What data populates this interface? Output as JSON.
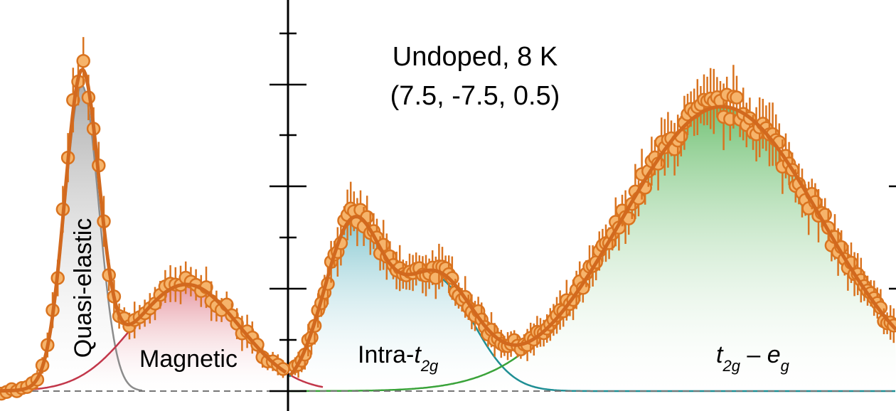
{
  "chart_data": {
    "type": "scatter",
    "title_line1": "Undoped, 8 K",
    "title_line2": "(7.5, -7.5, 0.5)",
    "xlabel": "",
    "ylabel": "",
    "labels": {
      "quasi": "Quasi-elastic",
      "magnetic": "Magnetic",
      "intra_prefix": "Intra-",
      "intra_t": "t",
      "intra_sub": "2g",
      "tg_t": "t",
      "tg_sub1": "2g",
      "tg_dash": " – ",
      "tg_e": "e",
      "tg_sub2": "g"
    },
    "colors": {
      "data": "#d9731f",
      "data_fill": "#f6b46b",
      "quasi_fill": "#b9b9b9",
      "quasi_line": "#8c8c8c",
      "magnetic_fill": "#e08590",
      "magnetic_line": "#c2374a",
      "intra_fill": "#7cc3cc",
      "intra_line": "#1f8f94",
      "tg_fill": "#6cc06e",
      "tg_line": "#3aa33a",
      "baseline": "#777777"
    },
    "components": [
      {
        "name": "Quasi-elastic",
        "type": "gauss",
        "center": 115,
        "amplitude": 430,
        "width": 24
      },
      {
        "name": "Magnetic",
        "type": "gauss",
        "center": 262,
        "amplitude": 150,
        "width": 75
      },
      {
        "name": "Intra-t2g peak 1",
        "type": "gauss",
        "center": 495,
        "amplitude": 225,
        "width": 40
      },
      {
        "name": "Intra-t2g peak 2",
        "type": "gauss",
        "center": 610,
        "amplitude": 160,
        "width": 55
      },
      {
        "name": "t2g-eg",
        "type": "gauss",
        "center": 1015,
        "amplitude": 400,
        "width": 140
      }
    ],
    "panel_split": 405,
    "baseline_y": 550,
    "grid": false
  }
}
